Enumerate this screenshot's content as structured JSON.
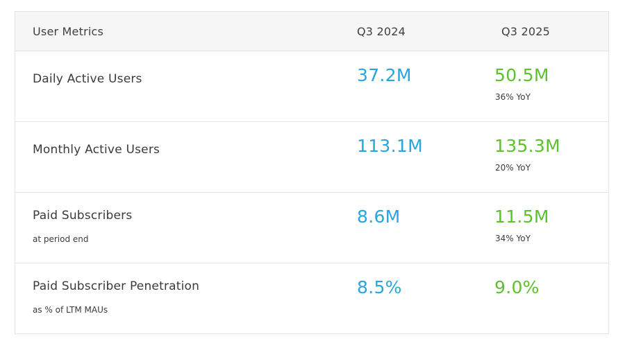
{
  "header": {
    "label": "User Metrics",
    "col1": "Q3 2024",
    "col2": "Q3 2025"
  },
  "rows": [
    {
      "label": "Daily Active Users",
      "sublabel": "",
      "q3_2024": "37.2M",
      "q3_2025": "50.5M",
      "yoy": "36% YoY"
    },
    {
      "label": "Monthly Active Users",
      "sublabel": "",
      "q3_2024": "113.1M",
      "q3_2025": "135.3M",
      "yoy": "20% YoY"
    },
    {
      "label": "Paid Subscribers",
      "sublabel": "at period end",
      "q3_2024": "8.6M",
      "q3_2025": "11.5M",
      "yoy": "34% YoY"
    },
    {
      "label": "Paid Subscriber Penetration",
      "sublabel": "as % of LTM MAUs",
      "q3_2024": "8.5%",
      "q3_2025": "9.0%",
      "yoy": ""
    }
  ],
  "colors": {
    "q3_2024_value": "#27a6de",
    "q3_2025_value": "#5dc12c",
    "header_bg": "#f6f6f6",
    "border": "#e3e3e3"
  }
}
